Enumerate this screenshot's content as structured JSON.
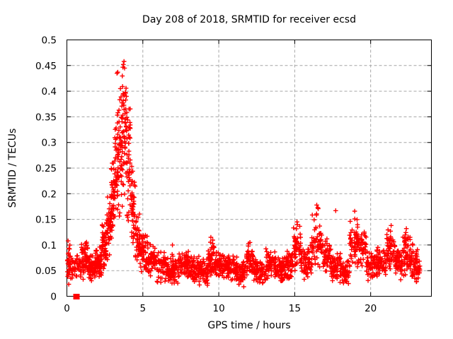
{
  "chart_data": {
    "type": "scatter",
    "title": "Day 208 of 2018, SRMTID for receiver ecsd",
    "xlabel": "GPS time / hours",
    "ylabel": "SRMTID / TECUs",
    "xlim": [
      0,
      24
    ],
    "ylim": [
      0,
      0.5
    ],
    "grid": true,
    "legend": "none",
    "xticks": {
      "values": [
        0,
        5,
        10,
        15,
        20
      ],
      "labels": [
        "0",
        "5",
        "10",
        "15",
        "20"
      ]
    },
    "yticks": {
      "values": [
        0,
        0.05,
        0.1,
        0.15,
        0.2,
        0.25,
        0.3,
        0.35,
        0.4,
        0.45,
        0.5
      ],
      "labels": [
        "0",
        "0.05",
        "0.1",
        "0.15",
        "0.2",
        "0.25",
        "0.3",
        "0.35",
        "0.4",
        "0.45",
        "0.5"
      ]
    },
    "colors": {
      "marker": "#ff0000",
      "grid": "#a6a6a6",
      "border": "#000000",
      "background": "#ffffff",
      "text": "#000000"
    },
    "series": [
      {
        "name": "SRMTID",
        "marker": "plus",
        "color": "#ff0000",
        "envelope_bins_format": [
          "x_start_hours",
          "x_end_hours",
          "y_min_TECUs",
          "y_max_TECUs",
          "point_count"
        ],
        "envelope_bins": [
          [
            0.03,
            0.25,
            0.02,
            0.105,
            30
          ],
          [
            0.25,
            0.55,
            0.03,
            0.085,
            18
          ],
          [
            0.55,
            0.9,
            0.03,
            0.09,
            22
          ],
          [
            0.9,
            1.4,
            0.028,
            0.11,
            55
          ],
          [
            1.4,
            1.9,
            0.025,
            0.085,
            60
          ],
          [
            1.9,
            2.3,
            0.03,
            0.1,
            55
          ],
          [
            2.3,
            2.6,
            0.05,
            0.145,
            45
          ],
          [
            2.6,
            2.9,
            0.07,
            0.21,
            45
          ],
          [
            2.9,
            3.15,
            0.1,
            0.3,
            45
          ],
          [
            3.15,
            3.4,
            0.13,
            0.38,
            45
          ],
          [
            3.4,
            3.65,
            0.15,
            0.44,
            45
          ],
          [
            3.65,
            3.95,
            0.17,
            0.46,
            48
          ],
          [
            3.95,
            4.2,
            0.13,
            0.38,
            42
          ],
          [
            4.2,
            4.5,
            0.09,
            0.27,
            40
          ],
          [
            4.5,
            4.8,
            0.06,
            0.17,
            38
          ],
          [
            4.8,
            5.3,
            0.045,
            0.13,
            55
          ],
          [
            5.3,
            5.9,
            0.035,
            0.105,
            55
          ],
          [
            5.9,
            6.6,
            0.025,
            0.09,
            65
          ],
          [
            6.6,
            7.3,
            0.02,
            0.085,
            70
          ],
          [
            7.3,
            8.0,
            0.03,
            0.095,
            70
          ],
          [
            8.0,
            8.7,
            0.025,
            0.085,
            70
          ],
          [
            8.7,
            9.3,
            0.02,
            0.08,
            60
          ],
          [
            9.3,
            9.7,
            0.035,
            0.115,
            45
          ],
          [
            9.7,
            10.4,
            0.03,
            0.09,
            65
          ],
          [
            10.4,
            11.2,
            0.025,
            0.085,
            75
          ],
          [
            11.2,
            11.8,
            0.015,
            0.07,
            55
          ],
          [
            11.8,
            12.3,
            0.03,
            0.105,
            50
          ],
          [
            12.3,
            13.1,
            0.02,
            0.075,
            70
          ],
          [
            13.1,
            13.7,
            0.03,
            0.1,
            55
          ],
          [
            13.7,
            14.4,
            0.025,
            0.08,
            65
          ],
          [
            14.4,
            14.9,
            0.03,
            0.09,
            50
          ],
          [
            14.9,
            15.4,
            0.04,
            0.145,
            50
          ],
          [
            15.4,
            16.1,
            0.03,
            0.1,
            60
          ],
          [
            16.1,
            16.8,
            0.05,
            0.175,
            60
          ],
          [
            16.8,
            17.4,
            0.04,
            0.12,
            50
          ],
          [
            17.4,
            18.1,
            0.025,
            0.085,
            60
          ],
          [
            18.1,
            18.6,
            0.02,
            0.075,
            45
          ],
          [
            18.6,
            19.2,
            0.05,
            0.165,
            55
          ],
          [
            19.2,
            19.7,
            0.05,
            0.14,
            45
          ],
          [
            19.7,
            20.4,
            0.03,
            0.09,
            60
          ],
          [
            20.4,
            21.0,
            0.03,
            0.1,
            55
          ],
          [
            21.0,
            21.6,
            0.04,
            0.135,
            55
          ],
          [
            21.6,
            22.1,
            0.03,
            0.1,
            50
          ],
          [
            22.1,
            22.6,
            0.035,
            0.13,
            50
          ],
          [
            22.6,
            23.1,
            0.025,
            0.105,
            55
          ],
          [
            23.1,
            23.25,
            0.03,
            0.08,
            12
          ]
        ],
        "outlier_points": [
          [
            0.08,
            0.108
          ],
          [
            3.3,
            0.435
          ],
          [
            3.35,
            0.437
          ],
          [
            3.72,
            0.452
          ],
          [
            3.76,
            0.458
          ],
          [
            3.8,
            0.445
          ],
          [
            6.95,
            0.1
          ],
          [
            9.48,
            0.115
          ],
          [
            12.05,
            0.105
          ],
          [
            15.15,
            0.145
          ],
          [
            16.45,
            0.178
          ],
          [
            16.55,
            0.171
          ],
          [
            17.7,
            0.167
          ],
          [
            18.95,
            0.166
          ],
          [
            21.35,
            0.138
          ],
          [
            22.35,
            0.132
          ]
        ],
        "special_points": [
          {
            "x": 0.63,
            "y": 0.0,
            "marker": "filled-square",
            "size": 9
          }
        ]
      }
    ]
  }
}
